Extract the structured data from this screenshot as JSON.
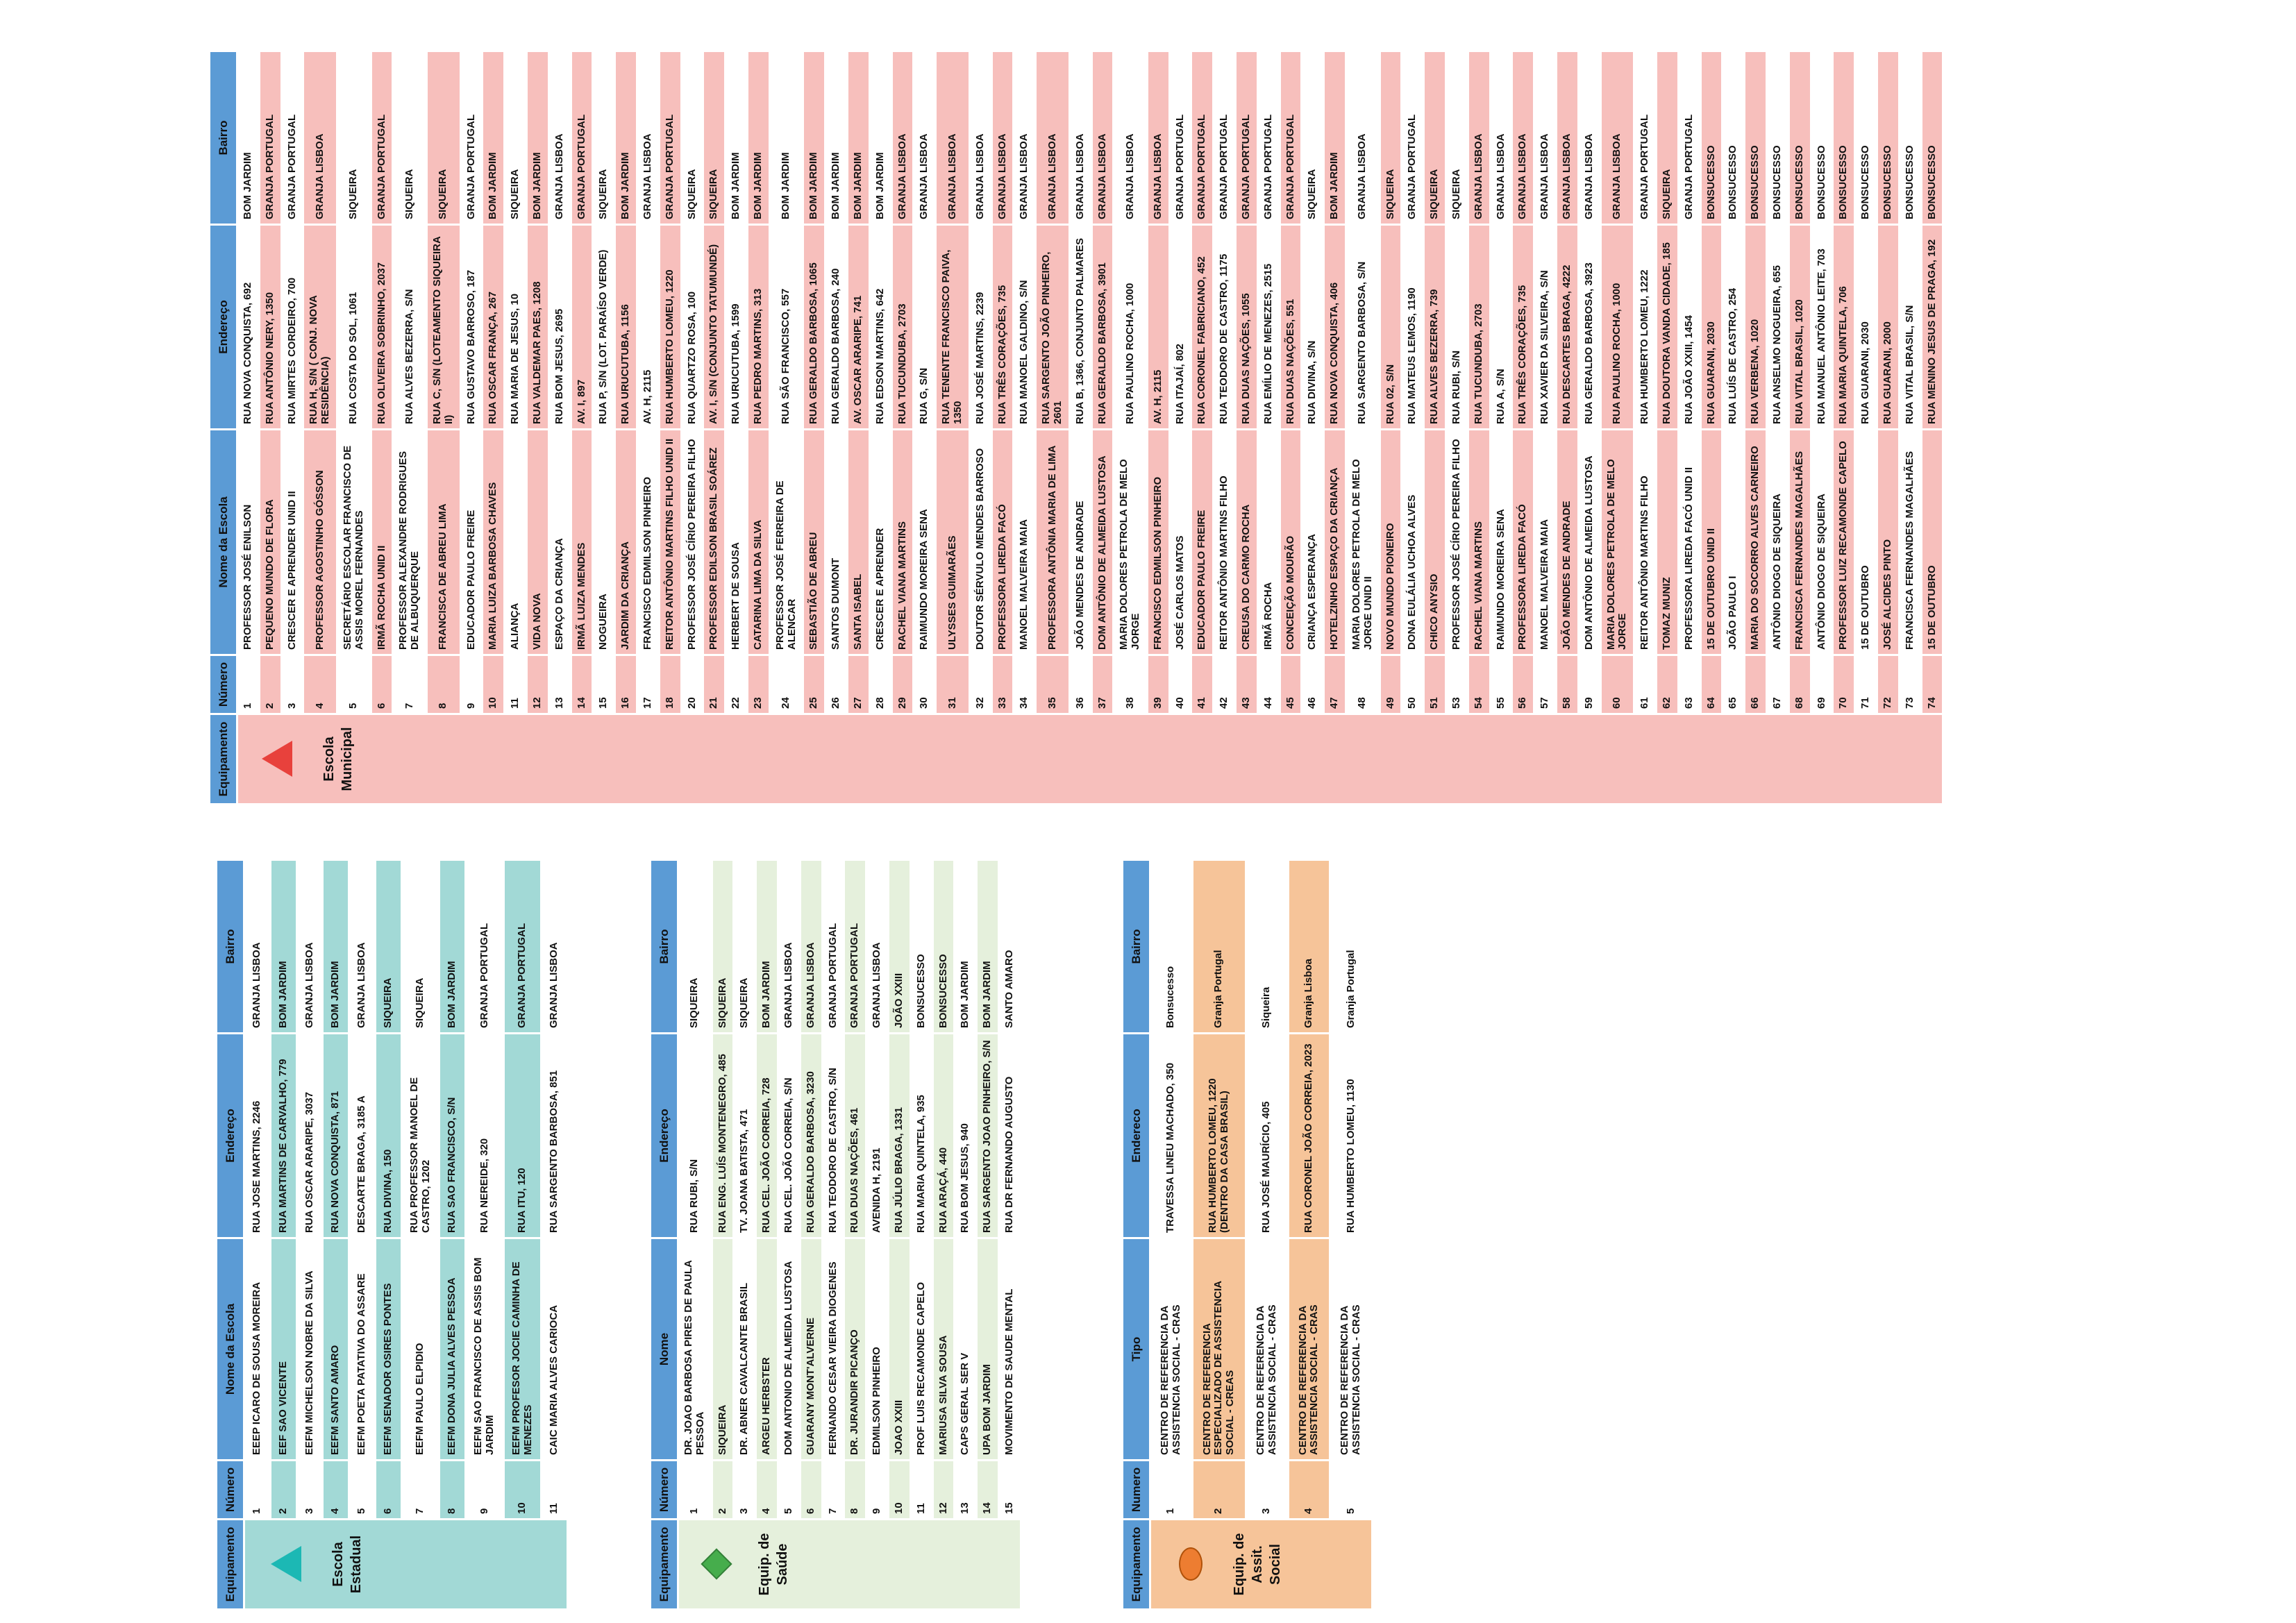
{
  "page": {
    "background_color": "#FFFFFF"
  },
  "tables": [
    {
      "group_label": "Escola\nMunicipal",
      "icon": {
        "name": "red-triangle-icon",
        "shape": "triangle",
        "color": "#E8413C"
      },
      "colors": {
        "header_bg": "#5B9BD5",
        "band": "#F7BFBC"
      },
      "columns": [
        "Equipamento",
        "Número",
        "Nome da Escola",
        "Endereço",
        "Bairro"
      ],
      "rows": [
        [
          "1",
          "PROFESSOR JOSÉ ENILSON",
          "RUA NOVA CONQUISTA, 692",
          "BOM JARDIM"
        ],
        [
          "2",
          "PEQUENO MUNDO DE FLORA",
          "RUA ANTÔNIO NERY, 1350",
          "GRANJA PORTUGAL"
        ],
        [
          "3",
          "CRESCER E APRENDER UNID II",
          "RUA MIRTES CORDEIRO, 700",
          "GRANJA PORTUGAL"
        ],
        [
          "4",
          "PROFESSOR AGOSTINHO GÓSSON",
          "RUA H, S/N ( CONJ. NOVA RESIDÊNCIA)",
          "GRANJA LISBOA"
        ],
        [
          "5",
          "SECRETÁRIO ESCOLAR FRANCISCO DE ASSIS MOREL FERNANDES",
          "RUA COSTA DO SOL, 1061",
          "SIQUEIRA"
        ],
        [
          "6",
          "IRMÃ ROCHA UNID II",
          "RUA OLIVEIRA SOBRINHO, 2037",
          "GRANJA PORTUGAL"
        ],
        [
          "7",
          "PROFESSOR ALEXANDRE RODRIGUES DE ALBUQUERQUE",
          "RUA ALVES BEZERRA, S/N",
          "SIQUEIRA"
        ],
        [
          "8",
          "FRANCISCA DE ABREU LIMA",
          "RUA C, S/N (LOTEAMENTO SIQUEIRA II)",
          "SIQUEIRA"
        ],
        [
          "9",
          "EDUCADOR PAULO FREIRE",
          "RUA GUSTAVO BARROSO, 187",
          "GRANJA PORTUGAL"
        ],
        [
          "10",
          "MARIA LUIZA BARBOSA CHAVES",
          "RUA OSCAR FRANÇA, 267",
          "BOM JARDIM"
        ],
        [
          "11",
          "ALIANÇA",
          "RUA MARIA DE JESUS, 10",
          "SIQUEIRA"
        ],
        [
          "12",
          "VIDA NOVA",
          "RUA VALDEMAR PAES, 1208",
          "BOM JARDIM"
        ],
        [
          "13",
          "ESPAÇO DA CRIANÇA",
          "RUA BOM JESUS, 2695",
          "GRANJA LISBOA"
        ],
        [
          "14",
          "IRMÃ LUIZA MENDES",
          "AV. I, 897",
          "GRANJA PORTUGAL"
        ],
        [
          "15",
          "NOGUEIRA",
          "RUA P, S/N (LOT. PARAÍSO VERDE)",
          "SIQUEIRA"
        ],
        [
          "16",
          "JARDIM DA CRIANÇA",
          "RUA URUCUTUBA, 1156",
          "BOM JARDIM"
        ],
        [
          "17",
          "FRANCISCO EDMILSON PINHEIRO",
          "AV. H, 2115",
          "GRANJA LISBOA"
        ],
        [
          "18",
          "REITOR ANTÔNIO MARTINS FILHO UNID II",
          "RUA HUMBERTO LOMEU, 1220",
          "GRANJA PORTUGAL"
        ],
        [
          "20",
          "PROFESSOR JOSÉ CÍRIO PEREIRA FILHO",
          "RUA QUARTZO ROSA, 100",
          "SIQUEIRA"
        ],
        [
          "21",
          "PROFESSOR EDILSON BRASIL SOÁREZ",
          "AV. I, S/N (CONJUNTO TATUMUNDÉ)",
          "SIQUEIRA"
        ],
        [
          "22",
          "HERBERT DE SOUSA",
          "RUA URUCUTUBA, 1599",
          "BOM JARDIM"
        ],
        [
          "23",
          "CATARINA LIMA DA SILVA",
          "RUA PEDRO MARTINS, 313",
          "BOM JARDIM"
        ],
        [
          "24",
          "PROFESSOR JOSÉ FERREIRA DE ALENCAR",
          "RUA SÃO FRANCISCO, 557",
          "BOM JARDIM"
        ],
        [
          "25",
          "SEBASTIÃO DE ABREU",
          "RUA GERALDO BARBOSA, 1065",
          "BOM JARDIM"
        ],
        [
          "26",
          "SANTOS DUMONT",
          "RUA GERALDO BARBOSA, 240",
          "BOM JARDIM"
        ],
        [
          "27",
          "SANTA ISABEL",
          "AV. OSCAR ARARIPE, 741",
          "BOM JARDIM"
        ],
        [
          "28",
          "CRESCER E APRENDER",
          "RUA EDSON MARTINS, 642",
          "BOM JARDIM"
        ],
        [
          "29",
          "RACHEL VIANA MARTINS",
          "RUA TUCUNDUBA, 2703",
          "GRANJA LISBOA"
        ],
        [
          "30",
          "RAIMUNDO MOREIRA SENA",
          "RUA G, S/N",
          "GRANJA LISBOA"
        ],
        [
          "31",
          "ULYSSES GUIMARÃES",
          "RUA TENENTE FRANCISCO PAIVA, 1350",
          "GRANJA LISBOA"
        ],
        [
          "32",
          "DOUTOR SÉRVULO MENDES BARROSO",
          "RUA JOSÉ MARTINS, 2239",
          "GRANJA LISBOA"
        ],
        [
          "33",
          "PROFESSORA LIREDA FACÓ",
          "RUA TRÊS CORAÇÕES, 735",
          "GRANJA LISBOA"
        ],
        [
          "34",
          "MANOEL MALVEIRA MAIA",
          "RUA MANOEL GALDINO, S/N",
          "GRANJA LISBOA"
        ],
        [
          "35",
          "PROFESSORA ANTÔNIA MARIA DE LIMA",
          "RUA SARGENTO JOÃO PINHEIRO, 2601",
          "GRANJA LISBOA"
        ],
        [
          "36",
          "JOÃO MENDES DE ANDRADE",
          "RUA B, 1366, CONJUNTO PALMARES",
          "GRANJA LISBOA"
        ],
        [
          "37",
          "DOM ANTÔNIO DE ALMEIDA LUSTOSA",
          "RUA GERALDO BARBOSA, 3901",
          "GRANJA LISBOA"
        ],
        [
          "38",
          "MARIA DOLORES PETROLA DE MELO JORGE",
          "RUA PAULINO ROCHA, 1000",
          "GRANJA LISBOA"
        ],
        [
          "39",
          "FRANCISCO EDMILSON PINHEIRO",
          "AV. H, 2115",
          "GRANJA LISBOA"
        ],
        [
          "40",
          "JOSÉ CARLOS MATOS",
          "RUA ITAJAÍ, 802",
          "GRANJA PORTUGAL"
        ],
        [
          "41",
          "EDUCADOR PAULO FREIRE",
          "RUA CORONEL FABRICIANO, 452",
          "GRANJA PORTUGAL"
        ],
        [
          "42",
          "REITOR ANTÔNIO MARTINS FILHO",
          "RUA TEODORO DE CASTRO, 1175",
          "GRANJA PORTUGAL"
        ],
        [
          "43",
          "CREUSA DO CARMO ROCHA",
          "RUA DUAS NAÇÕES, 1055",
          "GRANJA PORTUGAL"
        ],
        [
          "44",
          "IRMÃ ROCHA",
          "RUA EMÍLIO DE MENEZES, 2515",
          "GRANJA PORTUGAL"
        ],
        [
          "45",
          "CONCEIÇÃO MOURÃO",
          "RUA DUAS NAÇÕES, 551",
          "GRANJA PORTUGAL"
        ],
        [
          "46",
          "CRIANÇA ESPERANÇA",
          "RUA DIVINA, S/N",
          "SIQUEIRA"
        ],
        [
          "47",
          "HOTELZINHO ESPAÇO DA CRIANÇA",
          "RUA NOVA CONQUISTA, 406",
          "BOM JARDIM"
        ],
        [
          "48",
          "MARIA DOLORES PETROLA DE MELO JORGE UNID II",
          "RUA SARGENTO BARBOSA, S/N",
          "GRANJA LISBOA"
        ],
        [
          "49",
          "NOVO MUNDO PIONEIRO",
          "RUA 02, S/N",
          "SIQUEIRA"
        ],
        [
          "50",
          "DONA EULÁLIA UCHOA ALVES",
          "RUA MATEUS LEMOS, 1190",
          "GRANJA PORTUGAL"
        ],
        [
          "51",
          "CHICO ANYSIO",
          "RUA ALVES BEZERRA, 739",
          "SIQUEIRA"
        ],
        [
          "53",
          "PROFESSOR JOSÉ CÍRIO PEREIRA FILHO",
          "RUA RUBI, S/N",
          "SIQUEIRA"
        ],
        [
          "54",
          "RACHEL VIANA MARTINS",
          "RUA TUCUNDUBA, 2703",
          "GRANJA LISBOA"
        ],
        [
          "55",
          "RAIMUNDO MOREIRA SENA",
          "RUA A, S/N",
          "GRANJA LISBOA"
        ],
        [
          "56",
          "PROFESSORA LIREDA FACÓ",
          "RUA TRÊS CORAÇÕES, 735",
          "GRANJA LISBOA"
        ],
        [
          "57",
          "MANOEL MALVEIRA MAIA",
          "RUA XAVIER DA SILVEIRA, S/N",
          "GRANJA LISBOA"
        ],
        [
          "58",
          "JOÃO MENDES DE ANDRADE",
          "RUA DESCARTES BRAGA, 4222",
          "GRANJA LISBOA"
        ],
        [
          "59",
          "DOM ANTÔNIO DE ALMEIDA LUSTOSA",
          "RUA GERALDO BARBOSA, 3923",
          "GRANJA LISBOA"
        ],
        [
          "60",
          "MARIA DOLORES PETROLA DE MELO JORGE",
          "RUA PAULINO ROCHA, 1000",
          "GRANJA LISBOA"
        ],
        [
          "61",
          "REITOR ANTÔNIO MARTINS FILHO",
          "RUA HUMBERTO LOMEU, 1222",
          "GRANJA PORTUGAL"
        ],
        [
          "62",
          "TOMAZ MUNIZ",
          "RUA DOUTORA VANDA CIDADE, 185",
          "SIQUEIRA"
        ],
        [
          "63",
          "PROFESSORA LIREDA FACÓ UNID II",
          "RUA JOÃO XXIII, 1454",
          "GRANJA PORTUGAL"
        ],
        [
          "64",
          "15 DE OUTUBRO UNID II",
          "RUA GUARANI, 2030",
          "BONSUCESSO"
        ],
        [
          "65",
          "JOÃO PAULO I",
          "RUA LUÍS DE CASTRO, 254",
          "BONSUCESSO"
        ],
        [
          "66",
          "MARIA DO SOCORRO ALVES CARNEIRO",
          "RUA VERBENA, 1020",
          "BONSUCESSO"
        ],
        [
          "67",
          "ANTÔNIO DIOGO DE SIQUEIRA",
          "RUA ANSELMO NOGUEIRA, 655",
          "BONSUCESSO"
        ],
        [
          "68",
          "FRANCISCA FERNANDES MAGALHÃES",
          "RUA VITAL BRASIL, 1020",
          "BONSUCESSO"
        ],
        [
          "69",
          "ANTÔNIO DIOGO DE SIQUEIRA",
          "RUA MANUEL ANTÔNIO LEITE, 703",
          "BONSUCESSO"
        ],
        [
          "70",
          "PROFESSOR LUIZ RECAMONDE CAPELO",
          "RUA MARIA QUINTELA, 706",
          "BONSUCESSO"
        ],
        [
          "71",
          "15 DE OUTUBRO",
          "RUA GUARANI, 2030",
          "BONSUCESSO"
        ],
        [
          "72",
          "JOSÉ ALCIDES PINTO",
          "RUA GUARANI, 2000",
          "BONSUCESSO"
        ],
        [
          "73",
          "FRANCISCA FERNANDES MAGALHÃES",
          "RUA VITAL BRASIL, S/N",
          "BONSUCESSO"
        ],
        [
          "74",
          "15 DE OUTUBRO",
          "RUA MENINO JESUS DE PRAGA, 192",
          "BONSUCESSO"
        ]
      ]
    },
    {
      "group_label": "Escola\nEstadual",
      "icon": {
        "name": "teal-triangle-icon",
        "shape": "triangle",
        "color": "#1CB8B4"
      },
      "colors": {
        "header_bg": "#5B9BD5",
        "band": "#A2D9D6"
      },
      "columns": [
        "Equipamento",
        "Número",
        "Nome da Escola",
        "Endereço",
        "Bairro"
      ],
      "rows": [
        [
          "1",
          "EEEP ICARO DE SOUSA MOREIRA",
          "RUA JOSE MARTINS, 2246",
          "GRANJA LISBOA"
        ],
        [
          "2",
          "EEF SAO VICENTE",
          "RUA MARTINS DE CARVALHO, 779",
          "BOM JARDIM"
        ],
        [
          "3",
          "EEFM MICHELSON NOBRE DA SILVA",
          "RUA OSCAR ARARIPE, 3037",
          "GRANJA LISBOA"
        ],
        [
          "4",
          "EEFM SANTO AMARO",
          "RUA NOVA CONQUISTA, 871",
          "BOM JARDIM"
        ],
        [
          "5",
          "EEFM POETA PATATIVA DO ASSARE",
          "DESCARTE BRAGA, 3185 A",
          "GRANJA LISBOA"
        ],
        [
          "6",
          "EEFM SENADOR OSIRES PONTES",
          "RUA DIVINA, 150",
          "SIQUEIRA"
        ],
        [
          "7",
          "EEFM PAULO ELPIDIO",
          "RUA PROFESSOR MANOEL DE CASTRO, 1202",
          "SIQUEIRA"
        ],
        [
          "8",
          "EEFM DONA JULIA ALVES PESSOA",
          "RUA SAO FRANCISCO, S/N",
          "BOM JARDIM"
        ],
        [
          "9",
          "EEFM SAO FRANCISCO DE ASSIS BOM JARDIM",
          "RUA NEREIDE, 320",
          "GRANJA PORTUGAL"
        ],
        [
          "10",
          "EEFM PROFESOR JOCIE CAMINHA DE MENEZES",
          "RUA ITU, 120",
          "GRANJA PORTUGAL"
        ],
        [
          "11",
          "CAIC MARIA ALVES CARIOCA",
          "RUA SARGENTO BARBOSA, 851",
          "GRANJA LISBOA"
        ]
      ]
    },
    {
      "group_label": "Equip. de\nSaúde",
      "icon": {
        "name": "green-diamond-icon",
        "shape": "diamond",
        "color": "#46AD4C"
      },
      "colors": {
        "header_bg": "#5B9BD5",
        "band": "#E5F0DC"
      },
      "columns": [
        "Equipamento",
        "Número",
        "Nome",
        "Endereço",
        "Bairro"
      ],
      "rows": [
        [
          "1",
          "DR. JOAO BARBOSA PIRES DE PAULA PESSOA",
          "RUA RUBI, S/N",
          "SIQUEIRA"
        ],
        [
          "2",
          "SIQUEIRA",
          "RUA ENG. LUÍS MONTENEGRO, 485",
          "SIQUEIRA"
        ],
        [
          "3",
          "DR. ABNER CAVALCANTE BRASIL",
          "TV. JOANA BATISTA, 471",
          "SIQUEIRA"
        ],
        [
          "4",
          "ARGEU HERBSTER",
          "RUA CEL. JOÃO CORREIA, 728",
          "BOM JARDIM"
        ],
        [
          "5",
          "DOM ANTONIO DE ALMEIDA LUSTOSA",
          "RUA CEL. JOÃO CORREIA, S/N",
          "GRANJA LISBOA"
        ],
        [
          "6",
          "GUARANY MONT'ALVERNE",
          "RUA GERALDO BARBOSA, 3230",
          "GRANJA LISBOA"
        ],
        [
          "7",
          "FERNANDO CESAR VIEIRA DIOGENES",
          "RUA TEODORO DE CASTRO, S/N",
          "GRANJA PORTUGAL"
        ],
        [
          "8",
          "DR. JURANDIR PICANÇO",
          "RUA DUAS NAÇÕES, 461",
          "GRANJA PORTUGAL"
        ],
        [
          "9",
          "EDMILSON PINHEIRO",
          "AVENIDA H, 2191",
          "GRANJA LISBOA"
        ],
        [
          "10",
          "JOAO XXIII",
          "RUA JÚLIO BRAGA, 1331",
          "JOÃO XXIII"
        ],
        [
          "11",
          "PROF LUIS RECAMONDE CAPELO",
          "RUA MARIA QUINTELA, 935",
          "BONSUCESSO"
        ],
        [
          "12",
          "MARIUSA SILVA SOUSA",
          "RUA ARAÇÁ, 440",
          "BONSUCESSO"
        ],
        [
          "13",
          "CAPS GERAL SER V",
          "RUA BOM JESUS, 940",
          "BOM JARDIM"
        ],
        [
          "14",
          "UPA BOM JARDIM",
          "RUA SARGENTO JOAO PINHEIRO, S/N",
          "BOM JARDIM"
        ],
        [
          "15",
          "MOVIMENTO DE SAUDE MENTAL",
          "RUA DR FERNANDO AUGUSTO",
          "SANTO AMARO"
        ]
      ]
    },
    {
      "group_label": "Equip. de\nAssit.\nSocial",
      "icon": {
        "name": "orange-ellipse-icon",
        "shape": "ellipse",
        "color": "#ED7D31"
      },
      "colors": {
        "header_bg": "#5B9BD5",
        "band": "#F6C499"
      },
      "columns": [
        "Equipamento",
        "Numero",
        "Tipo",
        "Endereco",
        "Bairro"
      ],
      "rows": [
        [
          "1",
          "CENTRO DE REFERENCIA DA ASSISTENCIA SOCIAL - CRAS",
          "TRAVESSA LINEU MACHADO, 350",
          "Bonsucesso"
        ],
        [
          "2",
          "CENTRO DE REFERENCIA ESPECIALIZADO DE ASSISTENCIA SOCIAL - CREAS",
          "RUA HUMBERTO LOMEU, 1220 (DENTRO DA CASA BRASIL)",
          "Granja Portugal"
        ],
        [
          "3",
          "CENTRO DE REFERENCIA DA ASSISTENCIA SOCIAL - CRAS",
          "RUA JOSÉ MAURÍCIO, 405",
          "Siqueira"
        ],
        [
          "4",
          "CENTRO DE REFERENCIA DA ASSISTENCIA SOCIAL - CRAS",
          "RUA CORONEL JOÃO CORREIA, 2023",
          "Granja Lisboa"
        ],
        [
          "5",
          "CENTRO DE REFERENCIA DA ASSISTENCIA SOCIAL - CRAS",
          "RUA HUMBERTO LOMEU, 1130",
          "Granja Portugal"
        ]
      ]
    }
  ]
}
